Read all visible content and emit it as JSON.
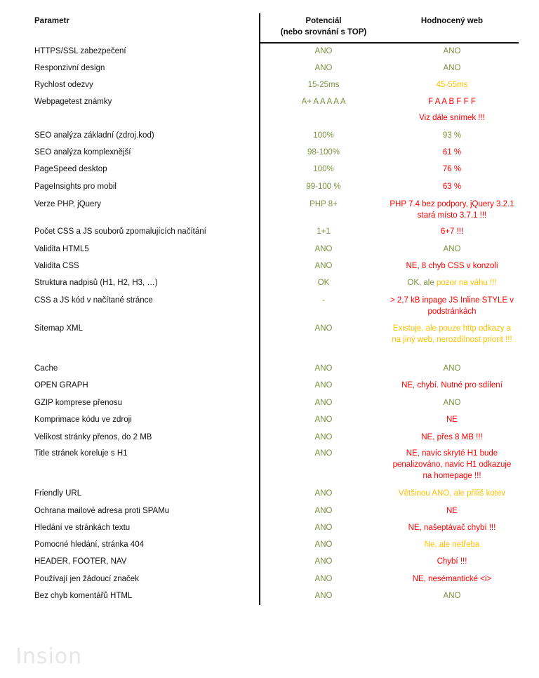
{
  "header": {
    "param": "Parametr",
    "potential_line1": "Potenciál",
    "potential_line2": "(nebo srovnání s TOP)",
    "web": "Hodnocený web"
  },
  "rows": [
    {
      "param": "HTTPS/SSL zabezpečení",
      "pot": "ANO",
      "pot_color": "#77933c",
      "web": "ANO",
      "web_color": "#77933c"
    },
    {
      "param": "Responzivní design",
      "pot": "ANO",
      "pot_color": "#77933c",
      "web": "ANO",
      "web_color": "#77933c"
    },
    {
      "param": "Rychlost odezvy",
      "pot": "15-25ms",
      "pot_color": "#77933c",
      "web": "45-55ms",
      "web_color": "#ffc000"
    },
    {
      "param": "Webpagetest známky",
      "pot": "A+ A A A A A",
      "pot_color": "#77933c",
      "web": "F A A B F F F",
      "web_color": "#ff0000"
    },
    {
      "param": "",
      "pot": "",
      "pot_color": "#77933c",
      "web": "Viz dále snímek !!!",
      "web_color": "#ff0000"
    },
    {
      "param": "SEO analýza základní (zdroj.kod)",
      "pot": "100%",
      "pot_color": "#77933c",
      "web": "93 %",
      "web_color": "#77933c"
    },
    {
      "param": "SEO analýza komplexnější",
      "pot": "98-100%",
      "pot_color": "#77933c",
      "web": "61 %",
      "web_color": "#ff0000"
    },
    {
      "param": "PageSpeed desktop",
      "pot": "100%",
      "pot_color": "#77933c",
      "web": "76 %",
      "web_color": "#ff0000"
    },
    {
      "param": "PageInsights pro mobil",
      "pot": "99-100 %",
      "pot_color": "#77933c",
      "web": "63 %",
      "web_color": "#ff0000"
    },
    {
      "param": "Verze PHP, jQuery",
      "pot": "PHP 8+",
      "pot_color": "#77933c",
      "web": "PHP 7.4 bez podpory, jQuery 3.2.1 stará místo 3.7.1 !!!",
      "web_color": "#ff0000"
    },
    {
      "param": "Počet CSS a JS souborů zpomalujících načítání",
      "pot": "1+1",
      "pot_color": "#77933c",
      "web": "6+7 !!!",
      "web_color": "#ff0000"
    },
    {
      "param": "Validita HTML5",
      "pot": "ANO",
      "pot_color": "#77933c",
      "web": "ANO",
      "web_color": "#77933c"
    },
    {
      "param": "Validita CSS",
      "pot": "ANO",
      "pot_color": "#77933c",
      "web": "NE, 8 chyb CSS v konzoli",
      "web_color": "#ff0000"
    },
    {
      "param": "Struktura nadpisů (H1, H2, H3, …)",
      "pot": "OK",
      "pot_color": "#77933c",
      "web": "OK, ale pozor na váhu !!!",
      "web_color": "#ffc000",
      "web_prefix": "OK, ale ",
      "web_prefix_color": "#77933c"
    },
    {
      "param": "CSS a JS kód v načítané stránce",
      "pot": "-",
      "pot_color": "#77933c",
      "web": "> 2,7 kB inpage JS Inline STYLE v podstránkách",
      "web_color": "#ff0000"
    },
    {
      "param": "Sitemap XML",
      "pot": "ANO",
      "pot_color": "#77933c",
      "web": "Existuje, ale pouze http odkazy a na jiný web, nerozdílnost priorit !!!",
      "web_color": "#ffc000"
    },
    {
      "param": "Cache",
      "pot": "ANO",
      "pot_color": "#77933c",
      "web": "ANO",
      "web_color": "#77933c"
    },
    {
      "param": "OPEN GRAPH",
      "pot": "ANO",
      "pot_color": "#77933c",
      "web": "NE, chybí. Nutné pro sdílení",
      "web_color": "#ff0000"
    },
    {
      "param": "GZIP komprese přenosu",
      "pot": "ANO",
      "pot_color": "#77933c",
      "web": "ANO",
      "web_color": "#77933c"
    },
    {
      "param": "Komprimace kódu ve zdroji",
      "pot": "ANO",
      "pot_color": "#77933c",
      "web": "NE",
      "web_color": "#ff0000"
    },
    {
      "param": "Velikost stránky přenos, do 2 MB",
      "pot": "ANO",
      "pot_color": "#77933c",
      "web": "NE, přes 8 MB !!!",
      "web_color": "#ff0000"
    },
    {
      "param": "Title stránek koreluje s H1",
      "pot": "ANO",
      "pot_color": "#77933c",
      "web": "NE, navíc skryté H1 bude penalizováno, navíc H1 odkazuje na homepage !!!",
      "web_color": "#ff0000"
    },
    {
      "param": "Friendly URL",
      "pot": "ANO",
      "pot_color": "#77933c",
      "web": "Většinou ANO, ale příliš kotev",
      "web_color": "#ffc000"
    },
    {
      "param": "Ochrana mailové adresa proti SPAMu",
      "pot": "ANO",
      "pot_color": "#77933c",
      "web": "NE",
      "web_color": "#ff0000"
    },
    {
      "param": "Hledání ve stránkách textu",
      "pot": "ANO",
      "pot_color": "#77933c",
      "web": "NE, našeptávač chybí !!!",
      "web_color": "#ff0000"
    },
    {
      "param": "Pomocné hledání, stránka 404",
      "pot": "ANO",
      "pot_color": "#77933c",
      "web": "Ne, ale netřeba",
      "web_color": "#ffc000"
    },
    {
      "param": "HEADER, FOOTER, NAV",
      "pot": "ANO",
      "pot_color": "#77933c",
      "web": "Chybí !!!",
      "web_color": "#ff0000"
    },
    {
      "param": "Používají jen žádoucí značek",
      "pot": "ANO",
      "pot_color": "#77933c",
      "web": "NE, nesémantické <i>",
      "web_color": "#ff0000"
    },
    {
      "param": "Bez chyb komentářů HTML",
      "pot": "ANO",
      "pot_color": "#77933c",
      "web": "ANO",
      "web_color": "#77933c"
    }
  ],
  "logo": "Insion"
}
